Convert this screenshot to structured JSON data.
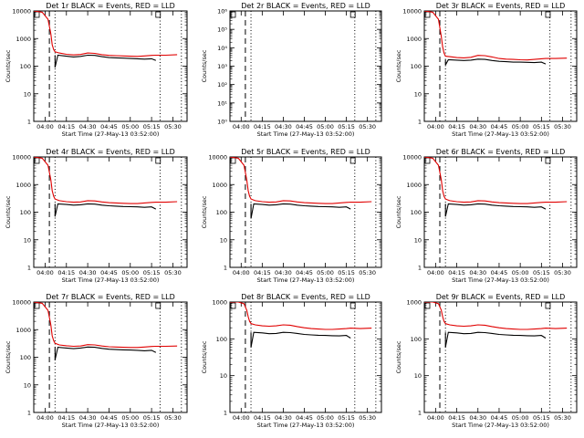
{
  "figure": {
    "xlabel": "Start Time (27-May-13 03:52:00)",
    "ylabel": "Counts/sec",
    "x_ticks": [
      "04:00",
      "04:15",
      "04:30",
      "04:45",
      "05:00",
      "05:15",
      "05:30"
    ],
    "x_tick_minutes": [
      0,
      15,
      30,
      45,
      60,
      75,
      90
    ],
    "xlim_minutes": [
      -8,
      100
    ],
    "colors": {
      "events": "#000000",
      "lld": "#e00000"
    }
  },
  "chart_data": [
    {
      "type": "line",
      "title": "Det 1r BLACK = Events, RED = LLD",
      "scale": "log",
      "ylim": [
        1,
        10000
      ],
      "y_ticks": [
        "1",
        "10",
        "100",
        "1000",
        "10000"
      ],
      "y_tick_values": [
        1,
        10,
        100,
        1000,
        10000
      ],
      "dashed_x": 3,
      "dotted_x": [
        7,
        81,
        96
      ],
      "series": [
        {
          "name": "Events",
          "x": [
            7,
            9,
            15,
            20,
            25,
            30,
            35,
            40,
            45,
            50,
            55,
            60,
            65,
            70,
            75,
            78
          ],
          "y": [
            90,
            250,
            230,
            215,
            225,
            250,
            245,
            220,
            205,
            200,
            195,
            190,
            185,
            180,
            185,
            160
          ]
        },
        {
          "name": "LLD",
          "x": [
            -8,
            -2,
            2,
            4,
            5,
            6,
            7,
            10,
            15,
            20,
            25,
            30,
            35,
            40,
            45,
            50,
            55,
            60,
            65,
            70,
            75,
            78,
            85,
            93
          ],
          "y": [
            12000,
            9000,
            5000,
            1500,
            600,
            400,
            330,
            300,
            270,
            255,
            265,
            300,
            290,
            260,
            245,
            240,
            235,
            230,
            225,
            235,
            245,
            250,
            250,
            260
          ]
        }
      ]
    },
    {
      "type": "line",
      "title": "Det 2r BLACK = Events, RED = LLD",
      "scale": "log",
      "ylim": [
        1,
        1000000
      ],
      "y_ticks": [
        "10⁰",
        "10¹",
        "10²",
        "10³",
        "10⁴",
        "10⁵",
        "10⁶"
      ],
      "y_tick_values": [
        1,
        10,
        100,
        1000,
        10000,
        100000,
        1000000
      ],
      "dashed_x": 3,
      "dotted_x": [
        7,
        81,
        96
      ],
      "series": []
    },
    {
      "type": "line",
      "title": "Det 3r BLACK = Events, RED = LLD",
      "scale": "log",
      "ylim": [
        1,
        10000
      ],
      "y_ticks": [
        "1",
        "10",
        "100",
        "1000",
        "10000"
      ],
      "y_tick_values": [
        1,
        10,
        100,
        1000,
        10000
      ],
      "dashed_x": 3,
      "dotted_x": [
        7,
        81,
        96
      ],
      "series": [
        {
          "name": "Events",
          "x": [
            7,
            9,
            15,
            20,
            25,
            30,
            35,
            40,
            45,
            50,
            55,
            60,
            65,
            70,
            75,
            78
          ],
          "y": [
            110,
            170,
            165,
            160,
            165,
            180,
            175,
            160,
            150,
            145,
            140,
            140,
            138,
            135,
            140,
            120
          ]
        },
        {
          "name": "LLD",
          "x": [
            -8,
            -2,
            2,
            4,
            5,
            6,
            7,
            10,
            15,
            20,
            25,
            30,
            35,
            40,
            45,
            50,
            55,
            60,
            65,
            70,
            75,
            78,
            85,
            93
          ],
          "y": [
            12000,
            9000,
            5000,
            1200,
            500,
            300,
            230,
            220,
            205,
            200,
            210,
            245,
            240,
            215,
            190,
            180,
            175,
            170,
            168,
            175,
            185,
            190,
            190,
            195
          ]
        }
      ]
    },
    {
      "type": "line",
      "title": "Det 4r BLACK = Events, RED = LLD",
      "scale": "log",
      "ylim": [
        1,
        10000
      ],
      "y_ticks": [
        "1",
        "10",
        "100",
        "1000",
        "10000"
      ],
      "y_tick_values": [
        1,
        10,
        100,
        1000,
        10000
      ],
      "dashed_x": 3,
      "dotted_x": [
        7,
        81,
        96
      ],
      "series": [
        {
          "name": "Events",
          "x": [
            7,
            9,
            15,
            20,
            25,
            30,
            35,
            40,
            45,
            50,
            55,
            60,
            65,
            70,
            75,
            78
          ],
          "y": [
            70,
            200,
            190,
            180,
            185,
            200,
            195,
            180,
            170,
            165,
            160,
            158,
            155,
            150,
            155,
            130
          ]
        },
        {
          "name": "LLD",
          "x": [
            -8,
            -2,
            2,
            4,
            5,
            6,
            7,
            10,
            15,
            20,
            25,
            30,
            35,
            40,
            45,
            50,
            55,
            60,
            65,
            70,
            75,
            78,
            85,
            93
          ],
          "y": [
            12000,
            9000,
            5000,
            1500,
            600,
            380,
            300,
            260,
            240,
            230,
            235,
            260,
            255,
            235,
            220,
            215,
            210,
            205,
            205,
            215,
            225,
            230,
            230,
            240
          ]
        }
      ]
    },
    {
      "type": "line",
      "title": "Det 5r BLACK = Events, RED = LLD",
      "scale": "log",
      "ylim": [
        1,
        10000
      ],
      "y_ticks": [
        "1",
        "10",
        "100",
        "1000",
        "10000"
      ],
      "y_tick_values": [
        1,
        10,
        100,
        1000,
        10000
      ],
      "dashed_x": 3,
      "dotted_x": [
        7,
        81,
        96
      ],
      "series": [
        {
          "name": "Events",
          "x": [
            7,
            9,
            15,
            20,
            25,
            30,
            35,
            40,
            45,
            50,
            55,
            60,
            65,
            70,
            75,
            78
          ],
          "y": [
            60,
            200,
            190,
            180,
            185,
            200,
            195,
            180,
            170,
            165,
            160,
            158,
            155,
            150,
            155,
            130
          ]
        },
        {
          "name": "LLD",
          "x": [
            -8,
            -2,
            2,
            4,
            5,
            6,
            7,
            10,
            15,
            20,
            25,
            30,
            35,
            40,
            45,
            50,
            55,
            60,
            65,
            70,
            75,
            78,
            85,
            93
          ],
          "y": [
            12000,
            9000,
            5000,
            1500,
            600,
            380,
            300,
            260,
            240,
            230,
            235,
            260,
            255,
            235,
            220,
            215,
            210,
            205,
            205,
            215,
            225,
            230,
            230,
            240
          ]
        }
      ]
    },
    {
      "type": "line",
      "title": "Det 6r BLACK = Events, RED = LLD",
      "scale": "log",
      "ylim": [
        1,
        10000
      ],
      "y_ticks": [
        "1",
        "10",
        "100",
        "1000",
        "10000"
      ],
      "y_tick_values": [
        1,
        10,
        100,
        1000,
        10000
      ],
      "dashed_x": 3,
      "dotted_x": [
        7,
        81,
        96
      ],
      "series": [
        {
          "name": "Events",
          "x": [
            7,
            9,
            15,
            20,
            25,
            30,
            35,
            40,
            45,
            50,
            55,
            60,
            65,
            70,
            75,
            78
          ],
          "y": [
            70,
            200,
            190,
            180,
            185,
            200,
            195,
            180,
            170,
            165,
            160,
            158,
            155,
            150,
            155,
            130
          ]
        },
        {
          "name": "LLD",
          "x": [
            -8,
            -2,
            2,
            4,
            5,
            6,
            7,
            10,
            15,
            20,
            25,
            30,
            35,
            40,
            45,
            50,
            55,
            60,
            65,
            70,
            75,
            78,
            85,
            93
          ],
          "y": [
            12000,
            9000,
            5000,
            1500,
            600,
            380,
            300,
            260,
            240,
            230,
            235,
            260,
            255,
            235,
            220,
            215,
            210,
            205,
            205,
            215,
            225,
            230,
            230,
            240
          ]
        }
      ]
    },
    {
      "type": "line",
      "title": "Det 7r BLACK = Events, RED = LLD",
      "scale": "log",
      "ylim": [
        1,
        10000
      ],
      "y_ticks": [
        "1",
        "10",
        "100",
        "1000",
        "10000"
      ],
      "y_tick_values": [
        1,
        10,
        100,
        1000,
        10000
      ],
      "dashed_x": 3,
      "dotted_x": [
        7,
        81,
        96
      ],
      "series": [
        {
          "name": "Events",
          "x": [
            7,
            9,
            15,
            20,
            25,
            30,
            35,
            40,
            45,
            50,
            55,
            60,
            65,
            70,
            75,
            78
          ],
          "y": [
            80,
            230,
            215,
            205,
            215,
            235,
            230,
            210,
            195,
            190,
            185,
            182,
            178,
            172,
            178,
            150
          ]
        },
        {
          "name": "LLD",
          "x": [
            -8,
            -2,
            2,
            4,
            5,
            6,
            7,
            10,
            15,
            20,
            25,
            30,
            35,
            40,
            45,
            50,
            55,
            60,
            65,
            70,
            75,
            78,
            85,
            93
          ],
          "y": [
            12000,
            9000,
            5000,
            1500,
            600,
            400,
            320,
            280,
            260,
            250,
            255,
            285,
            280,
            255,
            240,
            235,
            230,
            225,
            225,
            235,
            245,
            250,
            250,
            255
          ]
        }
      ]
    },
    {
      "type": "line",
      "title": "Det 8r BLACK = Events, RED = LLD",
      "scale": "log",
      "ylim": [
        1,
        1000
      ],
      "y_ticks": [
        "1",
        "10",
        "100",
        "1000"
      ],
      "y_tick_values": [
        1,
        10,
        100,
        1000
      ],
      "dashed_x": 3,
      "dotted_x": [
        7,
        81,
        96
      ],
      "series": [
        {
          "name": "Events",
          "x": [
            7,
            9,
            15,
            20,
            25,
            30,
            35,
            40,
            45,
            50,
            55,
            60,
            65,
            70,
            75,
            78
          ],
          "y": [
            60,
            150,
            145,
            138,
            140,
            150,
            148,
            140,
            132,
            128,
            125,
            124,
            122,
            120,
            124,
            105
          ]
        },
        {
          "name": "LLD",
          "x": [
            -8,
            -2,
            2,
            4,
            5,
            6,
            7,
            10,
            15,
            20,
            25,
            30,
            35,
            40,
            45,
            50,
            55,
            60,
            65,
            70,
            75,
            78,
            85,
            93
          ],
          "y": [
            1200,
            1100,
            900,
            600,
            400,
            300,
            260,
            240,
            225,
            220,
            225,
            240,
            235,
            215,
            200,
            190,
            185,
            180,
            180,
            185,
            190,
            195,
            190,
            195
          ]
        }
      ]
    },
    {
      "type": "line",
      "title": "Det 9r BLACK = Events, RED = LLD",
      "scale": "log",
      "ylim": [
        1,
        1000
      ],
      "y_ticks": [
        "1",
        "10",
        "100",
        "1000"
      ],
      "y_tick_values": [
        1,
        10,
        100,
        1000
      ],
      "dashed_x": 3,
      "dotted_x": [
        7,
        81,
        96
      ],
      "series": [
        {
          "name": "Events",
          "x": [
            7,
            9,
            15,
            20,
            25,
            30,
            35,
            40,
            45,
            50,
            55,
            60,
            65,
            70,
            75,
            78
          ],
          "y": [
            60,
            150,
            145,
            138,
            140,
            150,
            148,
            140,
            132,
            128,
            125,
            124,
            122,
            120,
            124,
            105
          ]
        },
        {
          "name": "LLD",
          "x": [
            -8,
            -2,
            2,
            4,
            5,
            6,
            7,
            10,
            15,
            20,
            25,
            30,
            35,
            40,
            45,
            50,
            55,
            60,
            65,
            70,
            75,
            78,
            85,
            93
          ],
          "y": [
            1200,
            1100,
            900,
            600,
            400,
            300,
            260,
            240,
            225,
            220,
            225,
            240,
            235,
            215,
            200,
            190,
            185,
            180,
            180,
            185,
            190,
            195,
            190,
            195
          ]
        }
      ]
    }
  ]
}
